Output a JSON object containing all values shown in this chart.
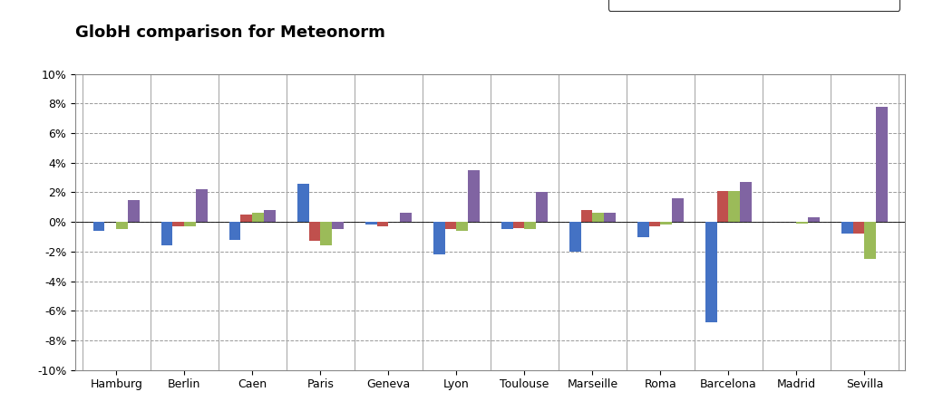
{
  "title": "GlobH comparison for Meteonorm",
  "categories": [
    "Hamburg",
    "Berlin",
    "Caen",
    "Paris",
    "Geneva",
    "Lyon",
    "Toulouse",
    "Marseille",
    "Roma",
    "Barcelona",
    "Madrid",
    "Sevilla"
  ],
  "series": {
    "MN 4": [
      -0.006,
      -0.016,
      -0.012,
      0.026,
      -0.002,
      -0.022,
      -0.005,
      -0.02,
      -0.01,
      -0.068,
      0.0,
      -0.008
    ],
    "MN6": [
      0.0,
      -0.003,
      0.005,
      -0.013,
      -0.003,
      -0.005,
      -0.004,
      0.008,
      -0.003,
      0.021,
      0.0,
      -0.008
    ],
    "MN6.1 (PVsyst6)": [
      -0.005,
      -0.003,
      0.006,
      -0.016,
      0.0,
      -0.006,
      -0.005,
      0.006,
      -0.002,
      0.021,
      -0.001,
      -0.025
    ],
    "MN7": [
      0.015,
      0.022,
      0.008,
      -0.005,
      0.006,
      0.035,
      0.02,
      0.006,
      0.016,
      0.027,
      0.003,
      0.078
    ]
  },
  "colors": {
    "MN 4": "#4472C4",
    "MN6": "#C0504D",
    "MN6.1 (PVsyst6)": "#9BBB59",
    "MN7": "#8064A2"
  },
  "ylim": [
    -0.1,
    0.1
  ],
  "yticks": [
    -0.1,
    -0.08,
    -0.06,
    -0.04,
    -0.02,
    0.0,
    0.02,
    0.04,
    0.06,
    0.08,
    0.1
  ],
  "background_color": "#FFFFFF",
  "grid_color": "#999999",
  "bar_width": 0.17,
  "title_fontsize": 13,
  "tick_fontsize": 9
}
